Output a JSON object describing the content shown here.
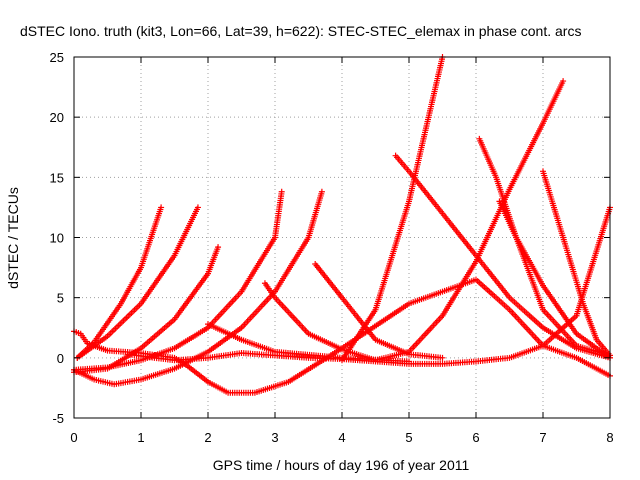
{
  "chart_data": {
    "type": "scatter",
    "title": "dSTEC Iono. truth (kit3, Lon=66, Lat=39, h=622): STEC-STEC_elemax in phase cont. arcs",
    "xlabel": "GPS time / hours of day 196 of year 2011",
    "ylabel": "dSTEC  / TECUs",
    "xlim": [
      0,
      8
    ],
    "ylim": [
      -5,
      25
    ],
    "x_ticks": [
      "0",
      "1",
      "2",
      "3",
      "4",
      "5",
      "6",
      "7",
      "8"
    ],
    "y_ticks": [
      "-5",
      "0",
      "5",
      "10",
      "15",
      "20",
      "25"
    ],
    "grid": true,
    "marker": "+",
    "series_color": "#ff0000",
    "series": [
      {
        "points": [
          [
            0.0,
            -1.0
          ],
          [
            0.3,
            -1.8
          ],
          [
            0.6,
            -2.2
          ],
          [
            1.0,
            -1.8
          ],
          [
            1.5,
            -0.9
          ],
          [
            2.0,
            0.5
          ],
          [
            2.5,
            2.5
          ],
          [
            3.0,
            5.5
          ],
          [
            3.5,
            10.0
          ],
          [
            3.7,
            13.8
          ]
        ]
      },
      {
        "points": [
          [
            0.0,
            -1.0
          ],
          [
            0.5,
            -0.8
          ],
          [
            1.0,
            -0.2
          ],
          [
            1.5,
            0.8
          ],
          [
            2.0,
            2.5
          ],
          [
            2.5,
            5.5
          ],
          [
            3.0,
            10.0
          ],
          [
            3.1,
            13.8
          ]
        ]
      },
      {
        "points": [
          [
            0.0,
            2.2
          ],
          [
            0.1,
            2.0
          ],
          [
            0.2,
            1.2
          ],
          [
            0.5,
            0.6
          ],
          [
            1.0,
            0.4
          ],
          [
            1.5,
            0.0
          ],
          [
            1.7,
            -0.7
          ],
          [
            2.0,
            -2.0
          ],
          [
            2.3,
            -2.9
          ],
          [
            2.7,
            -2.9
          ],
          [
            3.2,
            -2.0
          ],
          [
            4.0,
            0.8
          ],
          [
            5.0,
            4.5
          ],
          [
            6.0,
            6.5
          ],
          [
            6.5,
            4.0
          ],
          [
            7.0,
            1.0
          ],
          [
            7.5,
            0.0
          ],
          [
            8.0,
            -1.5
          ]
        ]
      },
      {
        "points": [
          [
            0.05,
            0.0
          ],
          [
            0.3,
            1.3
          ],
          [
            0.7,
            4.5
          ],
          [
            1.0,
            7.5
          ],
          [
            1.3,
            12.5
          ]
        ]
      },
      {
        "points": [
          [
            0.05,
            0.0
          ],
          [
            0.5,
            1.8
          ],
          [
            1.0,
            4.5
          ],
          [
            1.5,
            8.5
          ],
          [
            1.85,
            12.5
          ]
        ]
      },
      {
        "points": [
          [
            0.0,
            -1.2
          ],
          [
            0.5,
            -0.9
          ],
          [
            1.0,
            0.8
          ],
          [
            1.5,
            3.2
          ],
          [
            2.0,
            7.0
          ],
          [
            2.15,
            9.2
          ]
        ]
      },
      {
        "points": [
          [
            0.8,
            0.3
          ],
          [
            1.2,
            0.0
          ],
          [
            1.5,
            -0.2
          ],
          [
            2.0,
            0.0
          ],
          [
            2.5,
            0.4
          ],
          [
            3.0,
            0.2
          ],
          [
            3.5,
            0.0
          ],
          [
            4.0,
            -0.1
          ],
          [
            4.5,
            -0.3
          ],
          [
            5.0,
            -0.5
          ],
          [
            5.5,
            -0.5
          ],
          [
            6.0,
            -0.3
          ],
          [
            6.5,
            0.0
          ],
          [
            7.0,
            1.0
          ],
          [
            7.5,
            3.5
          ],
          [
            8.0,
            12.5
          ]
        ]
      },
      {
        "points": [
          [
            2.85,
            6.2
          ],
          [
            3.0,
            5.0
          ],
          [
            3.5,
            2.0
          ],
          [
            4.0,
            0.7
          ],
          [
            4.5,
            -0.2
          ],
          [
            5.0,
            0.5
          ],
          [
            5.5,
            3.5
          ],
          [
            6.0,
            8.0
          ],
          [
            6.5,
            14.0
          ],
          [
            7.0,
            19.5
          ],
          [
            7.3,
            23.0
          ]
        ]
      },
      {
        "points": [
          [
            3.6,
            7.8
          ],
          [
            4.0,
            5.0
          ],
          [
            4.5,
            1.5
          ],
          [
            5.0,
            0.3
          ],
          [
            5.5,
            0.0
          ]
        ]
      },
      {
        "points": [
          [
            4.0,
            -0.2
          ],
          [
            4.5,
            4.0
          ],
          [
            5.0,
            13.0
          ],
          [
            5.5,
            25.0
          ]
        ]
      },
      {
        "points": [
          [
            2.0,
            2.8
          ],
          [
            2.5,
            1.5
          ],
          [
            3.0,
            0.5
          ],
          [
            4.0,
            0.0
          ],
          [
            5.0,
            -0.3
          ]
        ]
      },
      {
        "points": [
          [
            4.8,
            16.8
          ],
          [
            5.0,
            15.5
          ],
          [
            5.5,
            12.0
          ],
          [
            6.0,
            8.5
          ],
          [
            6.5,
            5.0
          ],
          [
            7.0,
            2.5
          ],
          [
            7.5,
            0.8
          ],
          [
            8.0,
            0.0
          ]
        ]
      },
      {
        "points": [
          [
            6.05,
            18.2
          ],
          [
            6.3,
            15.0
          ],
          [
            6.6,
            10.0
          ],
          [
            7.0,
            4.0
          ],
          [
            7.5,
            1.0
          ],
          [
            8.0,
            0.2
          ]
        ]
      },
      {
        "points": [
          [
            6.35,
            13.0
          ],
          [
            6.6,
            10.0
          ],
          [
            7.0,
            6.0
          ],
          [
            7.5,
            2.0
          ],
          [
            8.0,
            0.0
          ]
        ]
      },
      {
        "points": [
          [
            7.0,
            15.5
          ],
          [
            7.3,
            10.0
          ],
          [
            7.6,
            4.5
          ],
          [
            7.8,
            1.5
          ],
          [
            8.0,
            0.2
          ]
        ]
      }
    ]
  }
}
